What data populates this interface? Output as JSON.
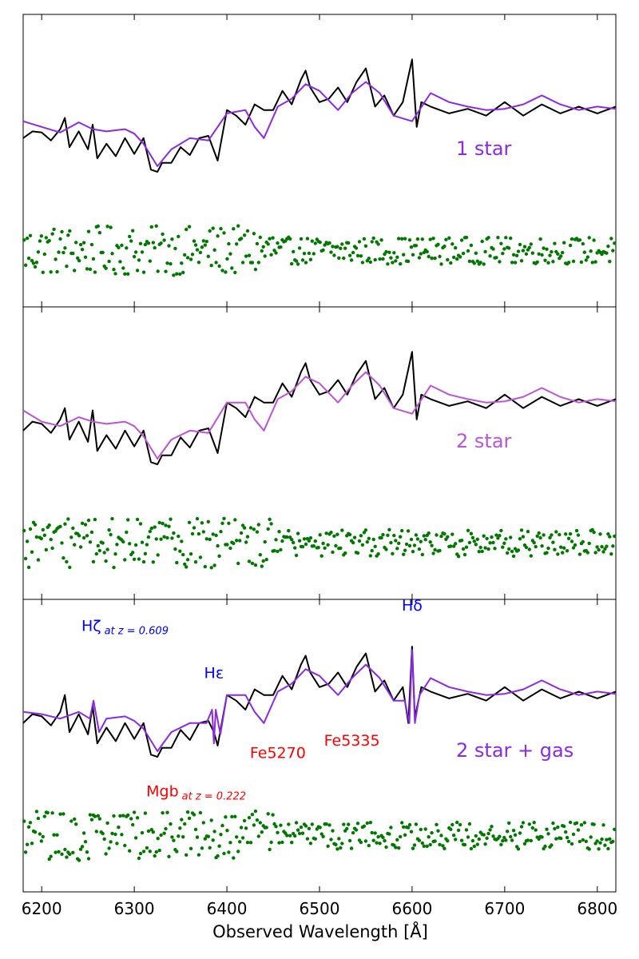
{
  "chart_data": {
    "type": "line",
    "xlabel": "Observed Wavelength [Å]",
    "xlim": [
      6180,
      6820
    ],
    "x_ticks": [
      6200,
      6300,
      6400,
      6500,
      6600,
      6700,
      6800
    ],
    "y_ticks_shown": false,
    "grid": false,
    "colors": {
      "observed": "#000000",
      "model_panel_1": "#8a2be2",
      "model_panel_2": "#ba55d3",
      "model_panel_3": "#8a2be2",
      "residuals": "#007800",
      "annotation_balmer": "#0000ff",
      "annotation_metal": "#ff0000"
    },
    "panels": [
      {
        "label": "1 star",
        "series": [
          {
            "role": "observed",
            "x": [
              6180,
              6190,
              6200,
              6210,
              6220,
              6225,
              6230,
              6240,
              6250,
              6255,
              6260,
              6270,
              6280,
              6290,
              6300,
              6310,
              6318,
              6325,
              6330,
              6340,
              6350,
              6360,
              6370,
              6380,
              6390,
              6400,
              6410,
              6420,
              6430,
              6440,
              6450,
              6460,
              6470,
              6480,
              6485,
              6490,
              6500,
              6510,
              6520,
              6530,
              6540,
              6550,
              6560,
              6570,
              6580,
              6590,
              6600,
              6605,
              6610,
              6620,
              6640,
              6660,
              6680,
              6700,
              6720,
              6740,
              6760,
              6780,
              6800,
              6820
            ],
            "y": [
              0.3,
              0.36,
              0.35,
              0.28,
              0.38,
              0.48,
              0.22,
              0.36,
              0.2,
              0.42,
              0.12,
              0.25,
              0.14,
              0.3,
              0.16,
              0.3,
              0.02,
              0.0,
              0.08,
              0.08,
              0.22,
              0.15,
              0.3,
              0.32,
              0.1,
              0.55,
              0.5,
              0.42,
              0.6,
              0.55,
              0.55,
              0.72,
              0.6,
              0.82,
              0.9,
              0.75,
              0.62,
              0.65,
              0.75,
              0.62,
              0.8,
              0.92,
              0.58,
              0.68,
              0.5,
              0.62,
              1.0,
              0.4,
              0.62,
              0.58,
              0.52,
              0.56,
              0.5,
              0.62,
              0.5,
              0.6,
              0.52,
              0.58,
              0.52,
              0.58
            ]
          },
          {
            "role": "model",
            "x": [
              6180,
              6200,
              6220,
              6240,
              6255,
              6270,
              6290,
              6300,
              6310,
              6325,
              6340,
              6360,
              6380,
              6400,
              6420,
              6430,
              6440,
              6455,
              6470,
              6485,
              6500,
              6520,
              6535,
              6550,
              6565,
              6580,
              6600,
              6620,
              6640,
              6660,
              6680,
              6700,
              6720,
              6740,
              6760,
              6780,
              6800,
              6820
            ],
            "y": [
              0.45,
              0.4,
              0.35,
              0.44,
              0.38,
              0.36,
              0.38,
              0.34,
              0.25,
              0.05,
              0.2,
              0.3,
              0.28,
              0.52,
              0.55,
              0.4,
              0.3,
              0.58,
              0.65,
              0.78,
              0.72,
              0.55,
              0.7,
              0.8,
              0.7,
              0.5,
              0.45,
              0.7,
              0.62,
              0.58,
              0.55,
              0.56,
              0.6,
              0.68,
              0.6,
              0.55,
              0.58,
              0.56
            ]
          },
          {
            "role": "residuals",
            "center": -0.7
          }
        ]
      },
      {
        "label": "2 star",
        "series": [
          {
            "role": "observed",
            "x": [
              6180,
              6190,
              6200,
              6210,
              6220,
              6225,
              6230,
              6240,
              6250,
              6255,
              6260,
              6270,
              6280,
              6290,
              6300,
              6310,
              6318,
              6325,
              6330,
              6340,
              6350,
              6360,
              6370,
              6380,
              6390,
              6400,
              6410,
              6420,
              6430,
              6440,
              6450,
              6460,
              6470,
              6480,
              6485,
              6490,
              6500,
              6510,
              6520,
              6530,
              6540,
              6550,
              6560,
              6570,
              6580,
              6590,
              6600,
              6605,
              6610,
              6620,
              6640,
              6660,
              6680,
              6700,
              6720,
              6740,
              6760,
              6780,
              6800,
              6820
            ],
            "y": [
              0.3,
              0.38,
              0.36,
              0.28,
              0.4,
              0.5,
              0.22,
              0.38,
              0.2,
              0.48,
              0.12,
              0.26,
              0.14,
              0.3,
              0.16,
              0.3,
              0.02,
              0.0,
              0.08,
              0.08,
              0.24,
              0.15,
              0.3,
              0.32,
              0.1,
              0.55,
              0.5,
              0.42,
              0.6,
              0.55,
              0.55,
              0.72,
              0.6,
              0.82,
              0.9,
              0.75,
              0.62,
              0.65,
              0.75,
              0.62,
              0.8,
              0.92,
              0.58,
              0.68,
              0.5,
              0.62,
              1.0,
              0.4,
              0.62,
              0.58,
              0.52,
              0.56,
              0.5,
              0.62,
              0.5,
              0.6,
              0.52,
              0.58,
              0.52,
              0.58
            ]
          },
          {
            "role": "model",
            "x": [
              6180,
              6200,
              6220,
              6240,
              6255,
              6270,
              6290,
              6300,
              6310,
              6325,
              6340,
              6360,
              6380,
              6400,
              6420,
              6430,
              6440,
              6455,
              6470,
              6485,
              6500,
              6520,
              6535,
              6550,
              6565,
              6580,
              6600,
              6620,
              6640,
              6660,
              6680,
              6700,
              6720,
              6740,
              6760,
              6780,
              6800,
              6820
            ],
            "y": [
              0.48,
              0.38,
              0.34,
              0.42,
              0.38,
              0.36,
              0.38,
              0.34,
              0.25,
              0.05,
              0.22,
              0.3,
              0.28,
              0.55,
              0.55,
              0.4,
              0.3,
              0.58,
              0.65,
              0.78,
              0.72,
              0.55,
              0.7,
              0.82,
              0.7,
              0.5,
              0.45,
              0.7,
              0.62,
              0.58,
              0.55,
              0.56,
              0.6,
              0.68,
              0.6,
              0.55,
              0.58,
              0.56
            ]
          },
          {
            "role": "residuals",
            "center": -0.7
          }
        ]
      },
      {
        "label": "2 star + gas",
        "series": [
          {
            "role": "observed",
            "x": [
              6180,
              6190,
              6200,
              6210,
              6220,
              6225,
              6230,
              6240,
              6250,
              6255,
              6260,
              6270,
              6280,
              6290,
              6300,
              6310,
              6318,
              6325,
              6330,
              6340,
              6350,
              6360,
              6370,
              6380,
              6386,
              6390,
              6400,
              6410,
              6420,
              6430,
              6440,
              6450,
              6460,
              6470,
              6480,
              6485,
              6490,
              6500,
              6510,
              6520,
              6530,
              6540,
              6550,
              6560,
              6570,
              6580,
              6590,
              6596,
              6600,
              6603,
              6610,
              6620,
              6640,
              6660,
              6680,
              6700,
              6720,
              6740,
              6760,
              6780,
              6800,
              6820
            ],
            "y": [
              0.3,
              0.38,
              0.36,
              0.28,
              0.4,
              0.55,
              0.22,
              0.38,
              0.2,
              0.45,
              0.12,
              0.26,
              0.14,
              0.3,
              0.16,
              0.3,
              0.02,
              0.0,
              0.08,
              0.08,
              0.24,
              0.15,
              0.3,
              0.32,
              0.22,
              0.1,
              0.55,
              0.5,
              0.42,
              0.6,
              0.55,
              0.55,
              0.72,
              0.6,
              0.82,
              0.9,
              0.75,
              0.62,
              0.65,
              0.75,
              0.62,
              0.8,
              0.92,
              0.58,
              0.68,
              0.5,
              0.62,
              0.3,
              0.98,
              0.35,
              0.62,
              0.58,
              0.52,
              0.56,
              0.5,
              0.62,
              0.5,
              0.6,
              0.52,
              0.58,
              0.52,
              0.58
            ]
          },
          {
            "role": "model",
            "x": [
              6180,
              6200,
              6220,
              6240,
              6252,
              6256,
              6262,
              6270,
              6290,
              6300,
              6310,
              6325,
              6340,
              6360,
              6378,
              6384,
              6386,
              6388,
              6393,
              6400,
              6420,
              6430,
              6440,
              6455,
              6470,
              6485,
              6500,
              6520,
              6535,
              6550,
              6565,
              6580,
              6592,
              6597,
              6600,
              6603,
              6608,
              6620,
              6640,
              6660,
              6680,
              6700,
              6720,
              6740,
              6760,
              6780,
              6800,
              6820
            ],
            "y": [
              0.4,
              0.38,
              0.34,
              0.4,
              0.34,
              0.5,
              0.22,
              0.34,
              0.36,
              0.32,
              0.25,
              0.05,
              0.22,
              0.3,
              0.3,
              0.42,
              0.12,
              0.42,
              0.2,
              0.55,
              0.55,
              0.4,
              0.3,
              0.58,
              0.65,
              0.78,
              0.72,
              0.55,
              0.7,
              0.82,
              0.7,
              0.5,
              0.5,
              0.3,
              0.95,
              0.3,
              0.55,
              0.7,
              0.62,
              0.58,
              0.55,
              0.56,
              0.6,
              0.68,
              0.6,
              0.55,
              0.58,
              0.56
            ]
          },
          {
            "role": "residuals",
            "center": -0.7
          }
        ]
      }
    ],
    "annotations": [
      {
        "panel": 2,
        "text": "Hζ",
        "sub": "at z = 0.609",
        "x": 6255,
        "y": 1.12,
        "color_key": "annotation_balmer"
      },
      {
        "panel": 2,
        "text": "Hε",
        "sub": "",
        "x": 6386,
        "y": 0.7,
        "color_key": "annotation_balmer"
      },
      {
        "panel": 2,
        "text": "Hδ",
        "sub": "",
        "x": 6600,
        "y": 1.3,
        "color_key": "annotation_balmer"
      },
      {
        "panel": 2,
        "text": "Fe5270",
        "sub": "",
        "x": 6455,
        "y": -0.01,
        "color_key": "annotation_metal"
      },
      {
        "panel": 2,
        "text": "Fe5335",
        "sub": "",
        "x": 6535,
        "y": 0.1,
        "color_key": "annotation_metal"
      },
      {
        "panel": 2,
        "text": "Mgb",
        "sub": "at z = 0.222",
        "x": 6325,
        "y": -0.35,
        "color_key": "annotation_metal"
      }
    ]
  }
}
